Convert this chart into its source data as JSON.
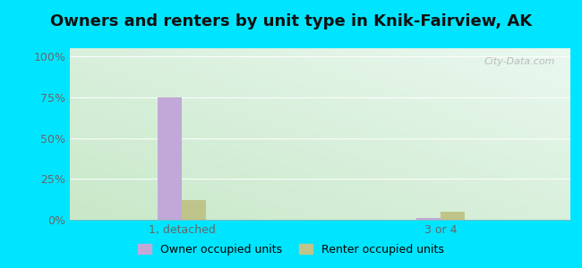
{
  "title": "Owners and renters by unit type in Knik-Fairview, AK",
  "categories": [
    "1, detached",
    "3 or 4"
  ],
  "owner_values": [
    75,
    1
  ],
  "renter_values": [
    12,
    5
  ],
  "owner_color": "#c2a8d8",
  "renter_color": "#bfc48a",
  "yticks": [
    0,
    25,
    50,
    75,
    100
  ],
  "ytick_labels": [
    "0%",
    "25%",
    "50%",
    "75%",
    "100%"
  ],
  "ylim": [
    0,
    105
  ],
  "bar_width": 0.28,
  "outer_bg": "#00e5ff",
  "plot_bg_colors": [
    "#d0ecd0",
    "#e8f5e8",
    "#eaf5f0",
    "#f0f8f0"
  ],
  "title_fontsize": 13,
  "legend_owner": "Owner occupied units",
  "legend_renter": "Renter occupied units",
  "watermark": "City-Data.com",
  "group_positions": [
    1.5,
    4.5
  ],
  "xlim": [
    0.2,
    6.0
  ]
}
